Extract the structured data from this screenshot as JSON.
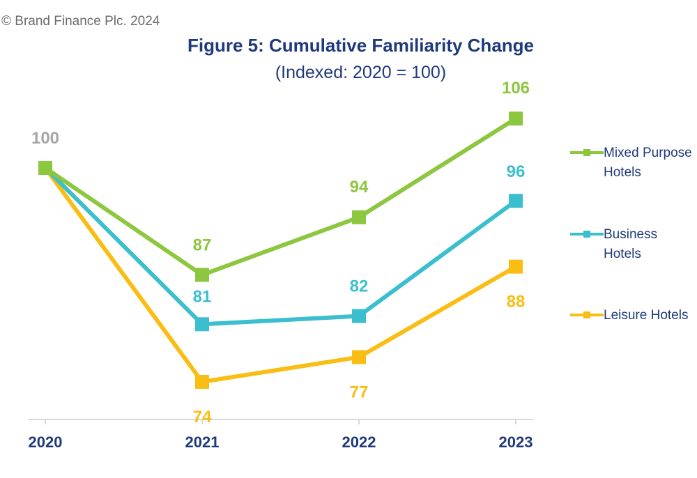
{
  "copyright": "© Brand Finance Plc. 2024",
  "chart_data": {
    "type": "line",
    "title": "Figure 5: Cumulative Familiarity Change",
    "subtitle": "(Indexed: 2020 = 100)",
    "categories": [
      "2020",
      "2021",
      "2022",
      "2023"
    ],
    "ylim": [
      70,
      110
    ],
    "grid": false,
    "legend_position": "right",
    "series": [
      {
        "name": "Mixed Purpose Hotels",
        "color": "#8dc63f",
        "values": [
          100,
          87,
          94,
          106
        ],
        "labels": [
          "100",
          "87",
          "94",
          "106"
        ]
      },
      {
        "name": "Business Hotels",
        "color": "#3bbfcf",
        "values": [
          100,
          81,
          82,
          96
        ],
        "labels": [
          "",
          "81",
          "82",
          "96"
        ]
      },
      {
        "name": "Leisure Hotels",
        "color": "#f9bd13",
        "values": [
          100,
          74,
          77,
          88
        ],
        "labels": [
          "",
          "74",
          "77",
          "88"
        ]
      }
    ],
    "first_label_color": "#a6a6a6",
    "axis_label_color": "#1f3a7a"
  }
}
